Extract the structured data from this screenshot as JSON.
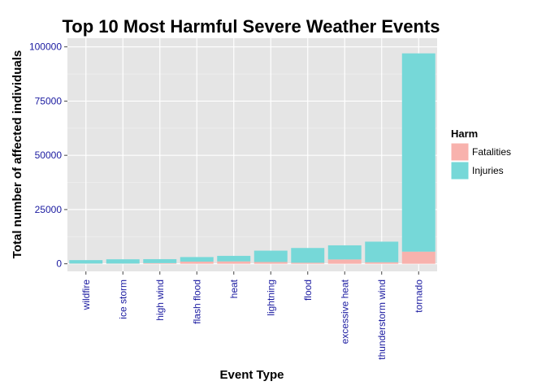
{
  "chart_data": {
    "type": "bar",
    "stacked": true,
    "title": "Top 10 Most Harmful Severe Weather Events",
    "xlabel": "Event Type",
    "ylabel": "Total number of affected individuals",
    "categories": [
      "wildfire",
      "ice storm",
      "high wind",
      "flash flood",
      "heat",
      "lightning",
      "flood",
      "excessive heat",
      "thunderstorm wind",
      "tornado"
    ],
    "series": [
      {
        "name": "Fatalities",
        "color": "#f8b2ad",
        "values": [
          90,
          89,
          300,
          1000,
          1100,
          820,
          480,
          2000,
          700,
          5600
        ]
      },
      {
        "name": "Injuries",
        "color": "#76d8d8",
        "values": [
          1600,
          1980,
          1830,
          2100,
          2550,
          5230,
          6800,
          6500,
          9500,
          91400
        ]
      }
    ],
    "ylim": [
      -3500,
      104000
    ],
    "yticks": [
      0,
      25000,
      50000,
      75000,
      100000
    ],
    "ytick_labels": [
      "0",
      "25000",
      "50000",
      "75000",
      "100000"
    ],
    "legend": {
      "title": "Harm",
      "position": "right"
    },
    "grid": true
  }
}
